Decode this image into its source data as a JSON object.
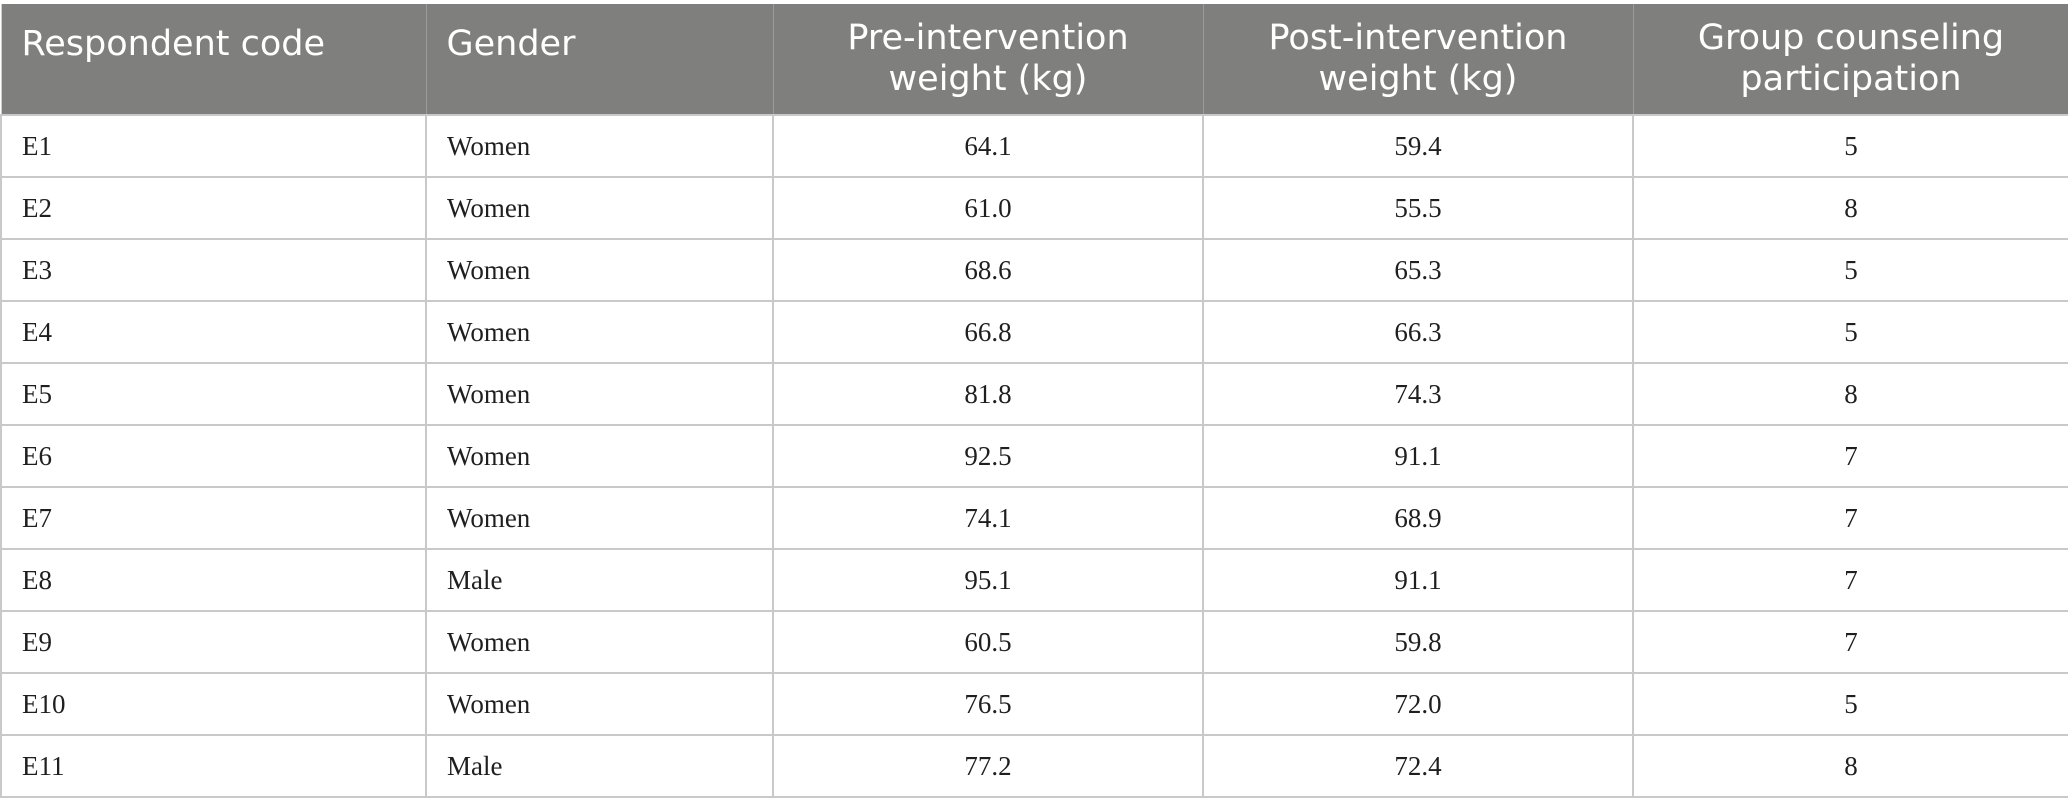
{
  "table": {
    "headers": [
      "Respondent code",
      "Gender",
      "Pre-intervention weight (kg)",
      "Post-intervention weight (kg)",
      "Group counseling participation"
    ],
    "rows": [
      [
        "E1",
        "Women",
        "64.1",
        "59.4",
        "5"
      ],
      [
        "E2",
        "Women",
        "61.0",
        "55.5",
        "8"
      ],
      [
        "E3",
        "Women",
        "68.6",
        "65.3",
        "5"
      ],
      [
        "E4",
        "Women",
        "66.8",
        "66.3",
        "5"
      ],
      [
        "E5",
        "Women",
        "81.8",
        "74.3",
        "8"
      ],
      [
        "E6",
        "Women",
        "92.5",
        "91.1",
        "7"
      ],
      [
        "E7",
        "Women",
        "74.1",
        "68.9",
        "7"
      ],
      [
        "E8",
        "Male",
        "95.1",
        "91.1",
        "7"
      ],
      [
        "E9",
        "Women",
        "60.5",
        "59.8",
        "7"
      ],
      [
        "E10",
        "Women",
        "76.5",
        "72.0",
        "5"
      ],
      [
        "E11",
        "Male",
        "77.2",
        "72.4",
        "8"
      ]
    ]
  },
  "colors": {
    "header_background": "#7f807e",
    "header_text": "#ffffff",
    "grid_line": "#c9c9c9",
    "body_text": "#1f1f1f"
  }
}
